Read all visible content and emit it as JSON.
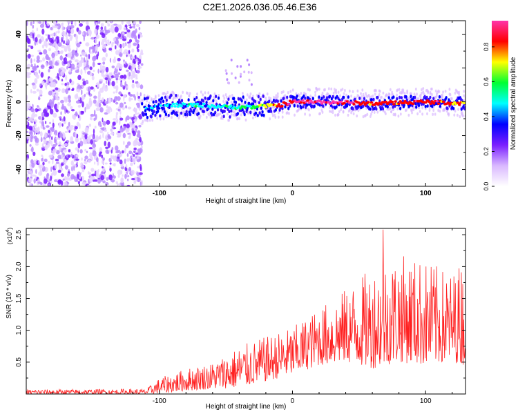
{
  "title": "C2E1.2026.036.05.46.E36",
  "chart_data": [
    {
      "type": "heatmap",
      "name": "spectrogram",
      "xlabel": "Height of straight line (km)",
      "ylabel": "Frequency (Hz)",
      "xlim": [
        -200,
        130
      ],
      "ylim": [
        -50,
        48
      ],
      "xticks": [
        -100,
        0,
        100
      ],
      "xtick_labels": [
        "-100",
        "0",
        "100"
      ],
      "yticks": [
        -40,
        -20,
        0,
        20,
        40
      ],
      "ytick_labels": [
        "-40",
        "-20",
        "0",
        "20",
        "40"
      ],
      "noise_region_x": [
        -200,
        -113
      ],
      "noise_region_y": [
        -50,
        48
      ],
      "signal_track": {
        "x": [
          -113,
          -90,
          -70,
          -50,
          -30,
          -10,
          0,
          20,
          60,
          100,
          130
        ],
        "freq": [
          -4,
          -2,
          -2,
          -3,
          -3,
          -2,
          0,
          0,
          -1,
          0,
          -1
        ],
        "amplitude": [
          0.35,
          0.4,
          0.4,
          0.4,
          0.5,
          0.75,
          0.85,
          0.9,
          0.75,
          0.8,
          0.7
        ]
      },
      "colorbar": {
        "label": "Normalized spectral amplitude",
        "range": [
          0,
          0.95
        ],
        "ticks": [
          0.0,
          0.2,
          0.4,
          0.6,
          0.8
        ],
        "tick_labels": [
          "0.0",
          "0.2",
          "0.4",
          "0.6",
          "0.8"
        ],
        "colors": [
          "#ffffff",
          "#d9b8ff",
          "#7a1fff",
          "#0000ff",
          "#00ffff",
          "#00ff33",
          "#ffff00",
          "#ff0000",
          "#ff33aa"
        ]
      }
    },
    {
      "type": "line",
      "name": "snr",
      "xlabel": "Height of straight line (km)",
      "ylabel": "SNR (10 * v/v)",
      "scale_label": "(x10",
      "scale_exponent": "4",
      "scale_close": ")",
      "xlim": [
        -200,
        130
      ],
      "ylim": [
        0,
        26000
      ],
      "xticks": [
        -100,
        0,
        100
      ],
      "xtick_labels": [
        "-100",
        "0",
        "100"
      ],
      "yticks": [
        5000,
        10000,
        15000,
        20000,
        25000
      ],
      "ytick_labels": [
        "0.5",
        "1.0",
        "1.5",
        "2.0",
        "2.5"
      ],
      "series": [
        {
          "name": "SNR",
          "color": "#ff2020",
          "envelope_x": [
            -200,
            -110,
            -100,
            -80,
            -60,
            -40,
            -20,
            0,
            20,
            40,
            60,
            80,
            100,
            120,
            130
          ],
          "envelope_low": [
            0,
            0,
            100,
            500,
            800,
            1000,
            2000,
            3000,
            4500,
            5000,
            4000,
            5000,
            4500,
            5000,
            4500
          ],
          "envelope_high": [
            700,
            800,
            2500,
            4000,
            5000,
            7500,
            9000,
            10500,
            13500,
            16500,
            20000,
            22000,
            21000,
            19000,
            22000
          ],
          "peak_value": 25800,
          "peak_x": 68
        }
      ]
    }
  ]
}
